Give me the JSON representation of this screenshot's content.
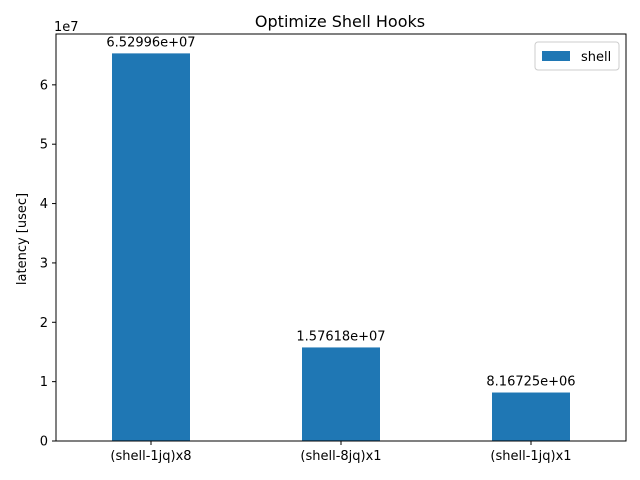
{
  "chart_data": {
    "type": "bar",
    "title": "Optimize Shell Hooks",
    "xlabel": "",
    "ylabel": "latency [usec]",
    "y_scale_label": "1e7",
    "y_scale_factor": 10000000,
    "categories": [
      "(shell-1jq)x8",
      "(shell-8jq)x1",
      "(shell-1jq)x1"
    ],
    "series": [
      {
        "name": "shell",
        "color": "#1f77b4",
        "values": [
          65299600,
          15761800,
          8167250
        ],
        "labels": [
          "6.52996e+07",
          "1.57618e+07",
          "8.16725e+06"
        ]
      }
    ],
    "yticks": [
      0,
      1,
      2,
      3,
      4,
      5,
      6
    ],
    "ytick_labels": [
      "0",
      "1",
      "2",
      "3",
      "4",
      "5",
      "6"
    ],
    "ylim": [
      0,
      68564580
    ],
    "grid": false,
    "legend_position": "top-right"
  }
}
